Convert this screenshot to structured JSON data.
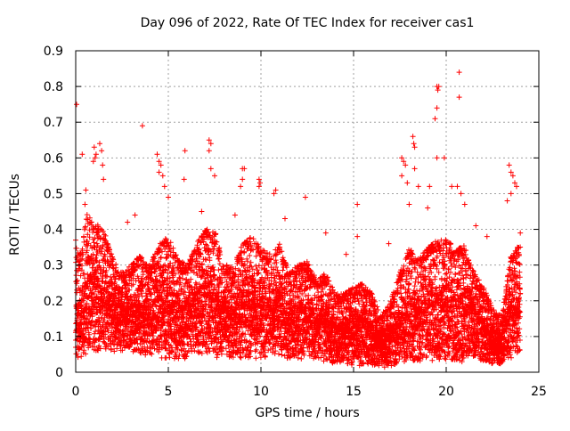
{
  "chart_data": {
    "type": "scatter",
    "title": "Day 096 of 2022, Rate Of TEC Index for receiver cas1",
    "xlabel": "GPS time / hours",
    "ylabel": "ROTI / TECUs",
    "xlim": [
      0,
      25
    ],
    "ylim": [
      0,
      0.9
    ],
    "xticks": [
      0,
      5,
      10,
      15,
      20,
      25
    ],
    "yticks": [
      0,
      0.1,
      0.2,
      0.3,
      0.4,
      0.5,
      0.6,
      0.7,
      0.8,
      0.9
    ],
    "ytick_labels": [
      "0",
      "0.1",
      "0.2",
      "0.3",
      "0.4",
      "0.5",
      "0.6",
      "0.7",
      "0.8",
      "0.9"
    ],
    "grid": true,
    "marker": "+",
    "marker_color": "#ff0000",
    "x_start": 0,
    "x_end": 24,
    "x_step": 0.0028,
    "envelope": {
      "x": [
        0,
        0.3,
        0.6,
        1.0,
        1.5,
        2.0,
        2.5,
        3.0,
        3.5,
        4.0,
        4.5,
        5.0,
        5.5,
        6.0,
        6.5,
        7.0,
        7.5,
        8.0,
        8.5,
        9.0,
        9.5,
        10.0,
        10.5,
        11.0,
        11.5,
        12.0,
        12.5,
        13.0,
        13.5,
        14.0,
        14.5,
        15.0,
        15.5,
        16.0,
        16.5,
        17.0,
        17.5,
        18.0,
        18.5,
        19.0,
        19.5,
        20.0,
        20.5,
        21.0,
        21.5,
        22.0,
        22.5,
        23.0,
        23.5,
        24.0
      ],
      "upper": [
        0.35,
        0.33,
        0.45,
        0.42,
        0.4,
        0.32,
        0.28,
        0.3,
        0.33,
        0.3,
        0.36,
        0.38,
        0.32,
        0.3,
        0.36,
        0.4,
        0.4,
        0.3,
        0.3,
        0.36,
        0.38,
        0.35,
        0.33,
        0.36,
        0.28,
        0.3,
        0.31,
        0.26,
        0.28,
        0.22,
        0.22,
        0.24,
        0.25,
        0.22,
        0.16,
        0.2,
        0.28,
        0.35,
        0.32,
        0.35,
        0.37,
        0.38,
        0.34,
        0.36,
        0.28,
        0.24,
        0.18,
        0.16,
        0.33,
        0.36
      ],
      "lower": [
        0.03,
        0.03,
        0.04,
        0.05,
        0.05,
        0.05,
        0.05,
        0.05,
        0.04,
        0.04,
        0.03,
        0.03,
        0.03,
        0.03,
        0.04,
        0.04,
        0.03,
        0.03,
        0.03,
        0.03,
        0.03,
        0.03,
        0.04,
        0.04,
        0.03,
        0.03,
        0.03,
        0.03,
        0.02,
        0.02,
        0.02,
        0.01,
        0.01,
        0.01,
        0.01,
        0.01,
        0.02,
        0.02,
        0.02,
        0.02,
        0.02,
        0.02,
        0.02,
        0.02,
        0.02,
        0.02,
        0.02,
        0.02,
        0.03,
        0.04
      ]
    },
    "outliers": [
      [
        0.05,
        0.75
      ],
      [
        0.35,
        0.61
      ],
      [
        0.55,
        0.51
      ],
      [
        0.5,
        0.47
      ],
      [
        1.0,
        0.63
      ],
      [
        1.1,
        0.61
      ],
      [
        1.3,
        0.64
      ],
      [
        1.4,
        0.62
      ],
      [
        1.45,
        0.58
      ],
      [
        1.5,
        0.54
      ],
      [
        0.95,
        0.59
      ],
      [
        1.05,
        0.6
      ],
      [
        3.6,
        0.69
      ],
      [
        4.4,
        0.61
      ],
      [
        4.5,
        0.59
      ],
      [
        4.6,
        0.58
      ],
      [
        4.5,
        0.56
      ],
      [
        4.8,
        0.52
      ],
      [
        4.7,
        0.55
      ],
      [
        5.0,
        0.49
      ],
      [
        5.9,
        0.62
      ],
      [
        5.85,
        0.54
      ],
      [
        7.2,
        0.65
      ],
      [
        7.3,
        0.64
      ],
      [
        7.2,
        0.62
      ],
      [
        7.3,
        0.57
      ],
      [
        7.5,
        0.55
      ],
      [
        9.0,
        0.57
      ],
      [
        9.1,
        0.57
      ],
      [
        9.0,
        0.54
      ],
      [
        8.9,
        0.52
      ],
      [
        9.9,
        0.54
      ],
      [
        9.95,
        0.53
      ],
      [
        9.9,
        0.52
      ],
      [
        10.8,
        0.51
      ],
      [
        10.7,
        0.5
      ],
      [
        12.4,
        0.49
      ],
      [
        15.2,
        0.47
      ],
      [
        15.2,
        0.38
      ],
      [
        17.6,
        0.6
      ],
      [
        17.7,
        0.59
      ],
      [
        17.8,
        0.58
      ],
      [
        17.6,
        0.55
      ],
      [
        17.9,
        0.53
      ],
      [
        18.0,
        0.47
      ],
      [
        18.2,
        0.66
      ],
      [
        18.25,
        0.64
      ],
      [
        18.3,
        0.63
      ],
      [
        18.3,
        0.57
      ],
      [
        18.5,
        0.52
      ],
      [
        19.1,
        0.52
      ],
      [
        19.5,
        0.8
      ],
      [
        19.6,
        0.8
      ],
      [
        19.55,
        0.79
      ],
      [
        19.5,
        0.74
      ],
      [
        19.4,
        0.71
      ],
      [
        19.5,
        0.6
      ],
      [
        19.9,
        0.6
      ],
      [
        20.3,
        0.52
      ],
      [
        20.7,
        0.84
      ],
      [
        20.7,
        0.77
      ],
      [
        20.6,
        0.52
      ],
      [
        20.8,
        0.5
      ],
      [
        21.0,
        0.47
      ],
      [
        23.4,
        0.58
      ],
      [
        23.5,
        0.56
      ],
      [
        23.6,
        0.55
      ],
      [
        23.7,
        0.53
      ],
      [
        23.8,
        0.52
      ],
      [
        23.5,
        0.5
      ],
      [
        23.3,
        0.48
      ],
      [
        24.0,
        0.39
      ],
      [
        0.0,
        0.37
      ],
      [
        2.8,
        0.42
      ],
      [
        3.2,
        0.44
      ],
      [
        6.8,
        0.45
      ],
      [
        8.6,
        0.44
      ],
      [
        11.3,
        0.43
      ],
      [
        13.5,
        0.39
      ],
      [
        14.6,
        0.33
      ],
      [
        16.9,
        0.36
      ],
      [
        19.0,
        0.46
      ],
      [
        21.6,
        0.41
      ],
      [
        22.2,
        0.38
      ]
    ]
  }
}
